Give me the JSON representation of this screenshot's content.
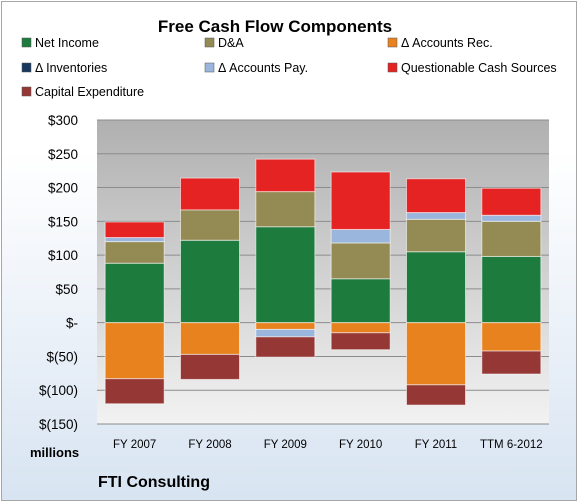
{
  "chart_data": {
    "type": "bar",
    "stacked": true,
    "title": "Free Cash Flow Components",
    "unit_label": "millions",
    "company": "FTI Consulting",
    "categories": [
      "FY 2007",
      "FY 2008",
      "FY 2009",
      "FY 2010",
      "FY 2011",
      "TTM 6-2012"
    ],
    "ylim": [
      -150,
      300
    ],
    "yticks": [
      300,
      250,
      200,
      150,
      100,
      50,
      0,
      -50,
      -100,
      -150
    ],
    "ytick_labels": [
      "$300",
      "$250",
      "$200",
      "$150",
      "$100",
      "$50",
      "$-",
      "$(50)",
      "$(100)",
      "$(150)"
    ],
    "grid": true,
    "legend_position": "top",
    "series": [
      {
        "name": "Net Income",
        "color": "#1e7b3e",
        "values": [
          88,
          122,
          142,
          65,
          105,
          98
        ]
      },
      {
        "name": "D&A",
        "color": "#948a54",
        "values": [
          32,
          45,
          52,
          53,
          48,
          52
        ]
      },
      {
        "name": "Δ Accounts Rec.",
        "color": "#e8821f",
        "values": [
          -83,
          -47,
          -10,
          -15,
          -92,
          -42
        ]
      },
      {
        "name": "Δ Inventories",
        "color": "#17375e",
        "values": [
          0,
          0,
          0,
          0,
          0,
          0
        ]
      },
      {
        "name": "Δ Accounts Pay.",
        "color": "#9ab6dc",
        "values": [
          6,
          0,
          -11,
          20,
          10,
          9
        ]
      },
      {
        "name": "Questionable Cash Sources",
        "color": "#e52323",
        "values": [
          23,
          47,
          48,
          85,
          50,
          40
        ]
      },
      {
        "name": "Capital Expenditure",
        "color": "#953735",
        "values": [
          -37,
          -37,
          -30,
          -25,
          -30,
          -34
        ]
      }
    ]
  }
}
